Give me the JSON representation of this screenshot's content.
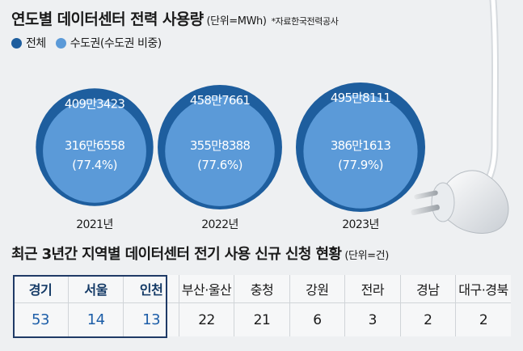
{
  "header": {
    "title": "연도별 데이터센터 전력 사용량",
    "unit": "(단위=MWh)",
    "source": "*자료한국전력공사"
  },
  "legend": [
    {
      "label": "전체",
      "color": "#1e5e9e"
    },
    {
      "label": "수도권(수도권 비중)",
      "color": "#5b9ad8"
    }
  ],
  "chart_data": {
    "type": "bubble",
    "title": "연도별 데이터센터 전력 사용량",
    "unit": "MWh",
    "categories": [
      "2021년",
      "2022년",
      "2023년"
    ],
    "series": [
      {
        "name": "전체",
        "values": [
          4093423,
          4587661,
          4958111
        ],
        "labels": [
          "409만3423",
          "458만7661",
          "495만8111"
        ]
      },
      {
        "name": "수도권(수도권 비중)",
        "values": [
          3166558,
          3558388,
          3861613
        ],
        "labels": [
          "316만6558",
          "355만8388",
          "386만1613"
        ],
        "share_labels": [
          "(77.4%)",
          "(77.6%)",
          "(77.9%)"
        ]
      }
    ]
  },
  "table": {
    "title": "최근 3년간 지역별 데이터센터 전기 사용 신규 신청 현황",
    "unit": "(단위=건)",
    "headers": [
      "경기",
      "서울",
      "인천",
      "부산·울산",
      "충청",
      "강원",
      "전라",
      "경남",
      "대구·경북"
    ],
    "values": [
      "53",
      "14",
      "13",
      "22",
      "21",
      "6",
      "3",
      "2",
      "2"
    ]
  }
}
